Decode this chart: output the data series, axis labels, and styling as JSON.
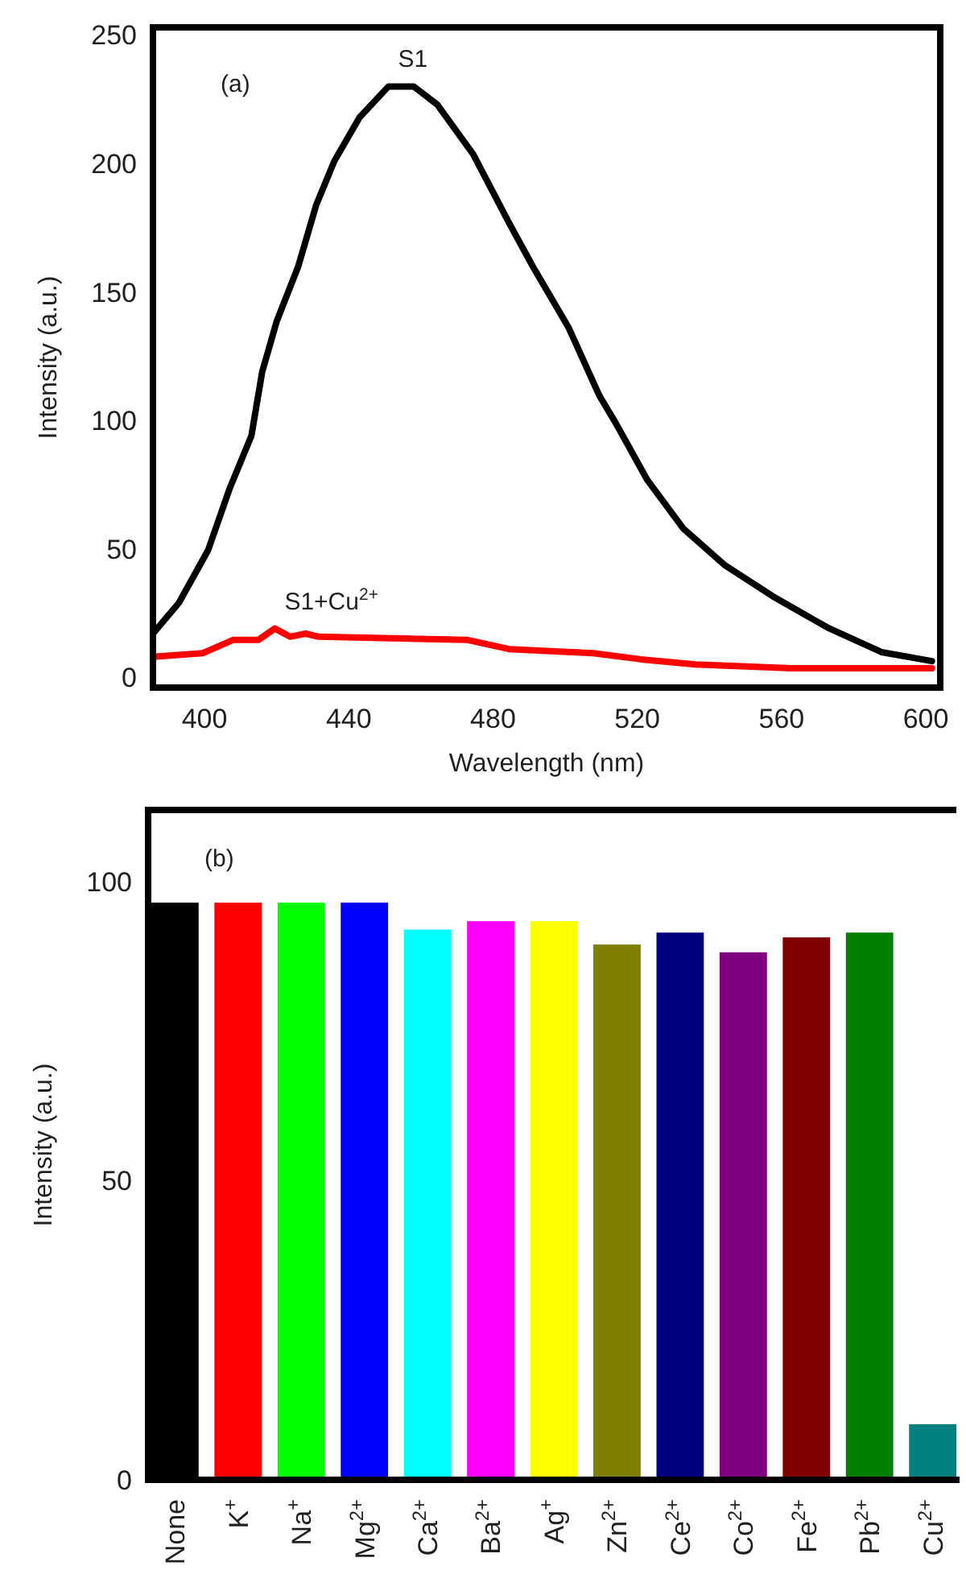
{
  "chart_data": [
    {
      "type": "line",
      "xlabel": "Wavelength (nm)",
      "ylabel": "Intensity (a.u.)",
      "xlim": [
        385.7,
        604
      ],
      "ylim": [
        -4,
        253
      ],
      "xticks": [
        400,
        440,
        480,
        520,
        560,
        600
      ],
      "yticks": [
        0,
        50,
        100,
        150,
        200,
        250
      ],
      "grid": false,
      "line_style": "solid",
      "marker": "none",
      "annotations": [
        "(a)"
      ],
      "series": [
        {
          "name": "S1",
          "color": "#000000",
          "x": [
            385.7,
            392.9,
            401,
            407,
            413,
            416,
            420,
            426,
            431,
            436,
            443,
            451,
            458,
            464.5,
            474.5,
            484.4,
            491,
            501,
            509.5,
            514,
            522.7,
            532.7,
            544.4,
            557.6,
            572.7,
            587.7,
            601.7
          ],
          "values": [
            17,
            29,
            49.5,
            73.6,
            94,
            119,
            138.5,
            160,
            184,
            201,
            218,
            230,
            230,
            223,
            203.6,
            177,
            160,
            136,
            109.6,
            99,
            77,
            58,
            43.5,
            31.5,
            19.4,
            9.8,
            6.3
          ]
        },
        {
          "name": "S1+Cu$^{2+}$",
          "color": "#ff0000",
          "x": [
            385.7,
            399.5,
            408,
            415,
            419.5,
            423.7,
            428,
            431.6,
            472.7,
            484.4,
            507.7,
            521,
            536,
            562.8,
            601.7
          ],
          "values": [
            8,
            9.4,
            14.6,
            14.6,
            19,
            15.8,
            17,
            15.8,
            14.6,
            11,
            9.4,
            7,
            5,
            3.5,
            3.5
          ]
        }
      ]
    },
    {
      "type": "bar",
      "ylabel": "Intensity (a.u.)",
      "ylim": [
        0,
        112
      ],
      "yticks": [
        0,
        50,
        100
      ],
      "grid": false,
      "annotations": [
        "(b)"
      ],
      "categories": [
        "None",
        "K$^{+}$",
        "Na$^{+}$",
        "Mg$^{2+}$",
        "Ca$^{2+}$",
        "Ba$^{2+}$",
        "Ag$^{+}$",
        "Zn$^{2+}$",
        "Ce$^{2+}$",
        "Co$^{2+}$",
        "Fe$^{2+}$",
        "Pb$^{2+}$",
        "Cu$^{2+}$"
      ],
      "values": [
        96.5,
        96.5,
        96.5,
        96.5,
        92,
        93.4,
        93.4,
        89.5,
        91.5,
        88.2,
        90.7,
        91.5,
        9.3
      ],
      "colors": [
        "#000000",
        "#ff0000",
        "#00ff00",
        "#0000ff",
        "#00ffff",
        "#ff00ff",
        "#ffff00",
        "#808000",
        "#000080",
        "#800080",
        "#800000",
        "#008000",
        "#008080"
      ]
    }
  ]
}
